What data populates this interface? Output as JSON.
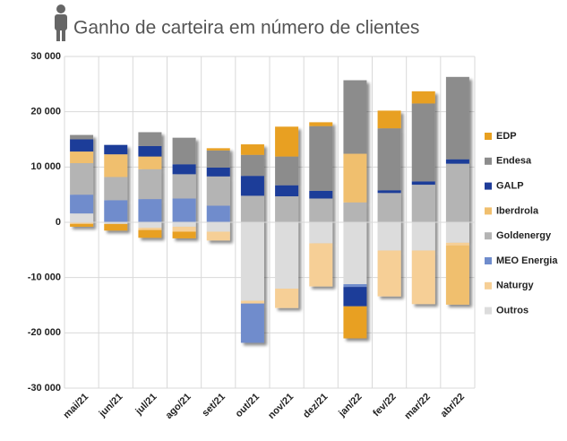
{
  "chart_data": {
    "type": "stacked_bar",
    "title": "Ganho de carteira em número de clientes",
    "categories": [
      "mai/21",
      "jun/21",
      "jul/21",
      "ago/21",
      "set/21",
      "out/21",
      "nov/21",
      "dez/21",
      "jan/22",
      "fev/22",
      "mar/22",
      "abr/22"
    ],
    "series": [
      {
        "name": "EDP",
        "color": "#e8a020",
        "values": [
          -500,
          -1200,
          -1400,
          -1200,
          400,
          1900,
          5400,
          700,
          -5800,
          3200,
          2200,
          0
        ]
      },
      {
        "name": "Endesa",
        "color": "#8c8c8c",
        "values": [
          800,
          0,
          2500,
          4800,
          3100,
          3800,
          5200,
          11700,
          13300,
          11200,
          14100,
          14900
        ]
      },
      {
        "name": "GALP",
        "color": "#1f3c99",
        "values": [
          2200,
          1700,
          1900,
          1800,
          1600,
          3600,
          2000,
          1400,
          -3500,
          500,
          600,
          800
        ]
      },
      {
        "name": "Iberdrola",
        "color": "#f0bf6e",
        "values": [
          2100,
          4100,
          2300,
          0,
          0,
          0,
          0,
          0,
          8800,
          0,
          0,
          -10700
        ]
      },
      {
        "name": "Goldenergy",
        "color": "#b4b4b4",
        "values": [
          5700,
          4200,
          5400,
          4400,
          5300,
          4800,
          4700,
          4300,
          3600,
          5300,
          6800,
          10600
        ]
      },
      {
        "name": "MEO Energia",
        "color": "#6f8ccc",
        "values": [
          3400,
          4000,
          4200,
          4300,
          3000,
          -7100,
          0,
          0,
          -500,
          0,
          0,
          0
        ]
      },
      {
        "name": "Naturgy",
        "color": "#f6cf96",
        "values": [
          -300,
          0,
          -400,
          -900,
          -1600,
          -500,
          -3500,
          -7800,
          0,
          -8300,
          -9700,
          -500
        ]
      },
      {
        "name": "Outros",
        "color": "#dcdcdc",
        "values": [
          1600,
          -300,
          -1000,
          -800,
          -1700,
          -14200,
          -12000,
          -3800,
          -11200,
          -5100,
          -5100,
          -3700
        ]
      }
    ],
    "ylim": [
      -30000,
      30000
    ],
    "yticks": [
      {
        "value": -30000,
        "label": "-30 000"
      },
      {
        "value": -20000,
        "label": "-20 000"
      },
      {
        "value": -10000,
        "label": "-10 000"
      },
      0,
      {
        "value": 10000,
        "label": "10 000"
      },
      {
        "value": 20000,
        "label": "20 000"
      },
      {
        "value": 30000,
        "label": "30 000"
      }
    ],
    "grid": true,
    "legend": "right"
  }
}
